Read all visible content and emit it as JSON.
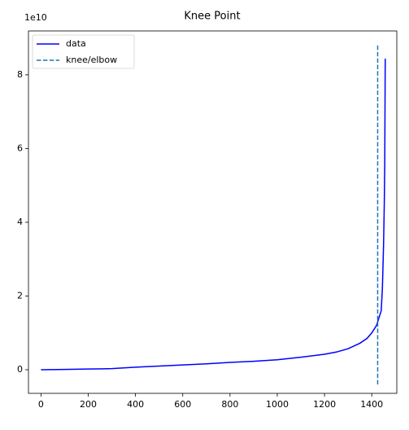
{
  "chart_data": {
    "type": "line",
    "title": "Knee Point",
    "y_offset_label": "1e10",
    "series": [
      {
        "name": "data",
        "color": "#0000ff",
        "linestyle": "solid",
        "x": [
          0,
          100,
          200,
          300,
          400,
          500,
          600,
          700,
          800,
          900,
          1000,
          1100,
          1200,
          1250,
          1300,
          1350,
          1380,
          1400,
          1420,
          1430,
          1440,
          1445,
          1450,
          1453,
          1455,
          1457
        ],
        "values": [
          0,
          0.01,
          0.02,
          0.03,
          0.07,
          0.1,
          0.13,
          0.16,
          0.2,
          0.23,
          0.27,
          0.34,
          0.42,
          0.48,
          0.57,
          0.72,
          0.85,
          1.0,
          1.2,
          1.4,
          1.6,
          2.2,
          3.4,
          4.5,
          5.6,
          8.44
        ]
      },
      {
        "name": "knee/elbow",
        "color": "#1f77b4",
        "linestyle": "dashed",
        "x": [
          1425,
          1425
        ],
        "values": [
          -0.4,
          8.8
        ]
      }
    ],
    "xlim": [
      -53,
      1506
    ],
    "ylim": [
      -0.64,
      9.19
    ],
    "xticks": [
      0,
      200,
      400,
      600,
      800,
      1000,
      1200,
      1400
    ],
    "yticks": [
      0,
      2,
      4,
      6,
      8
    ],
    "legend": "upper left"
  }
}
